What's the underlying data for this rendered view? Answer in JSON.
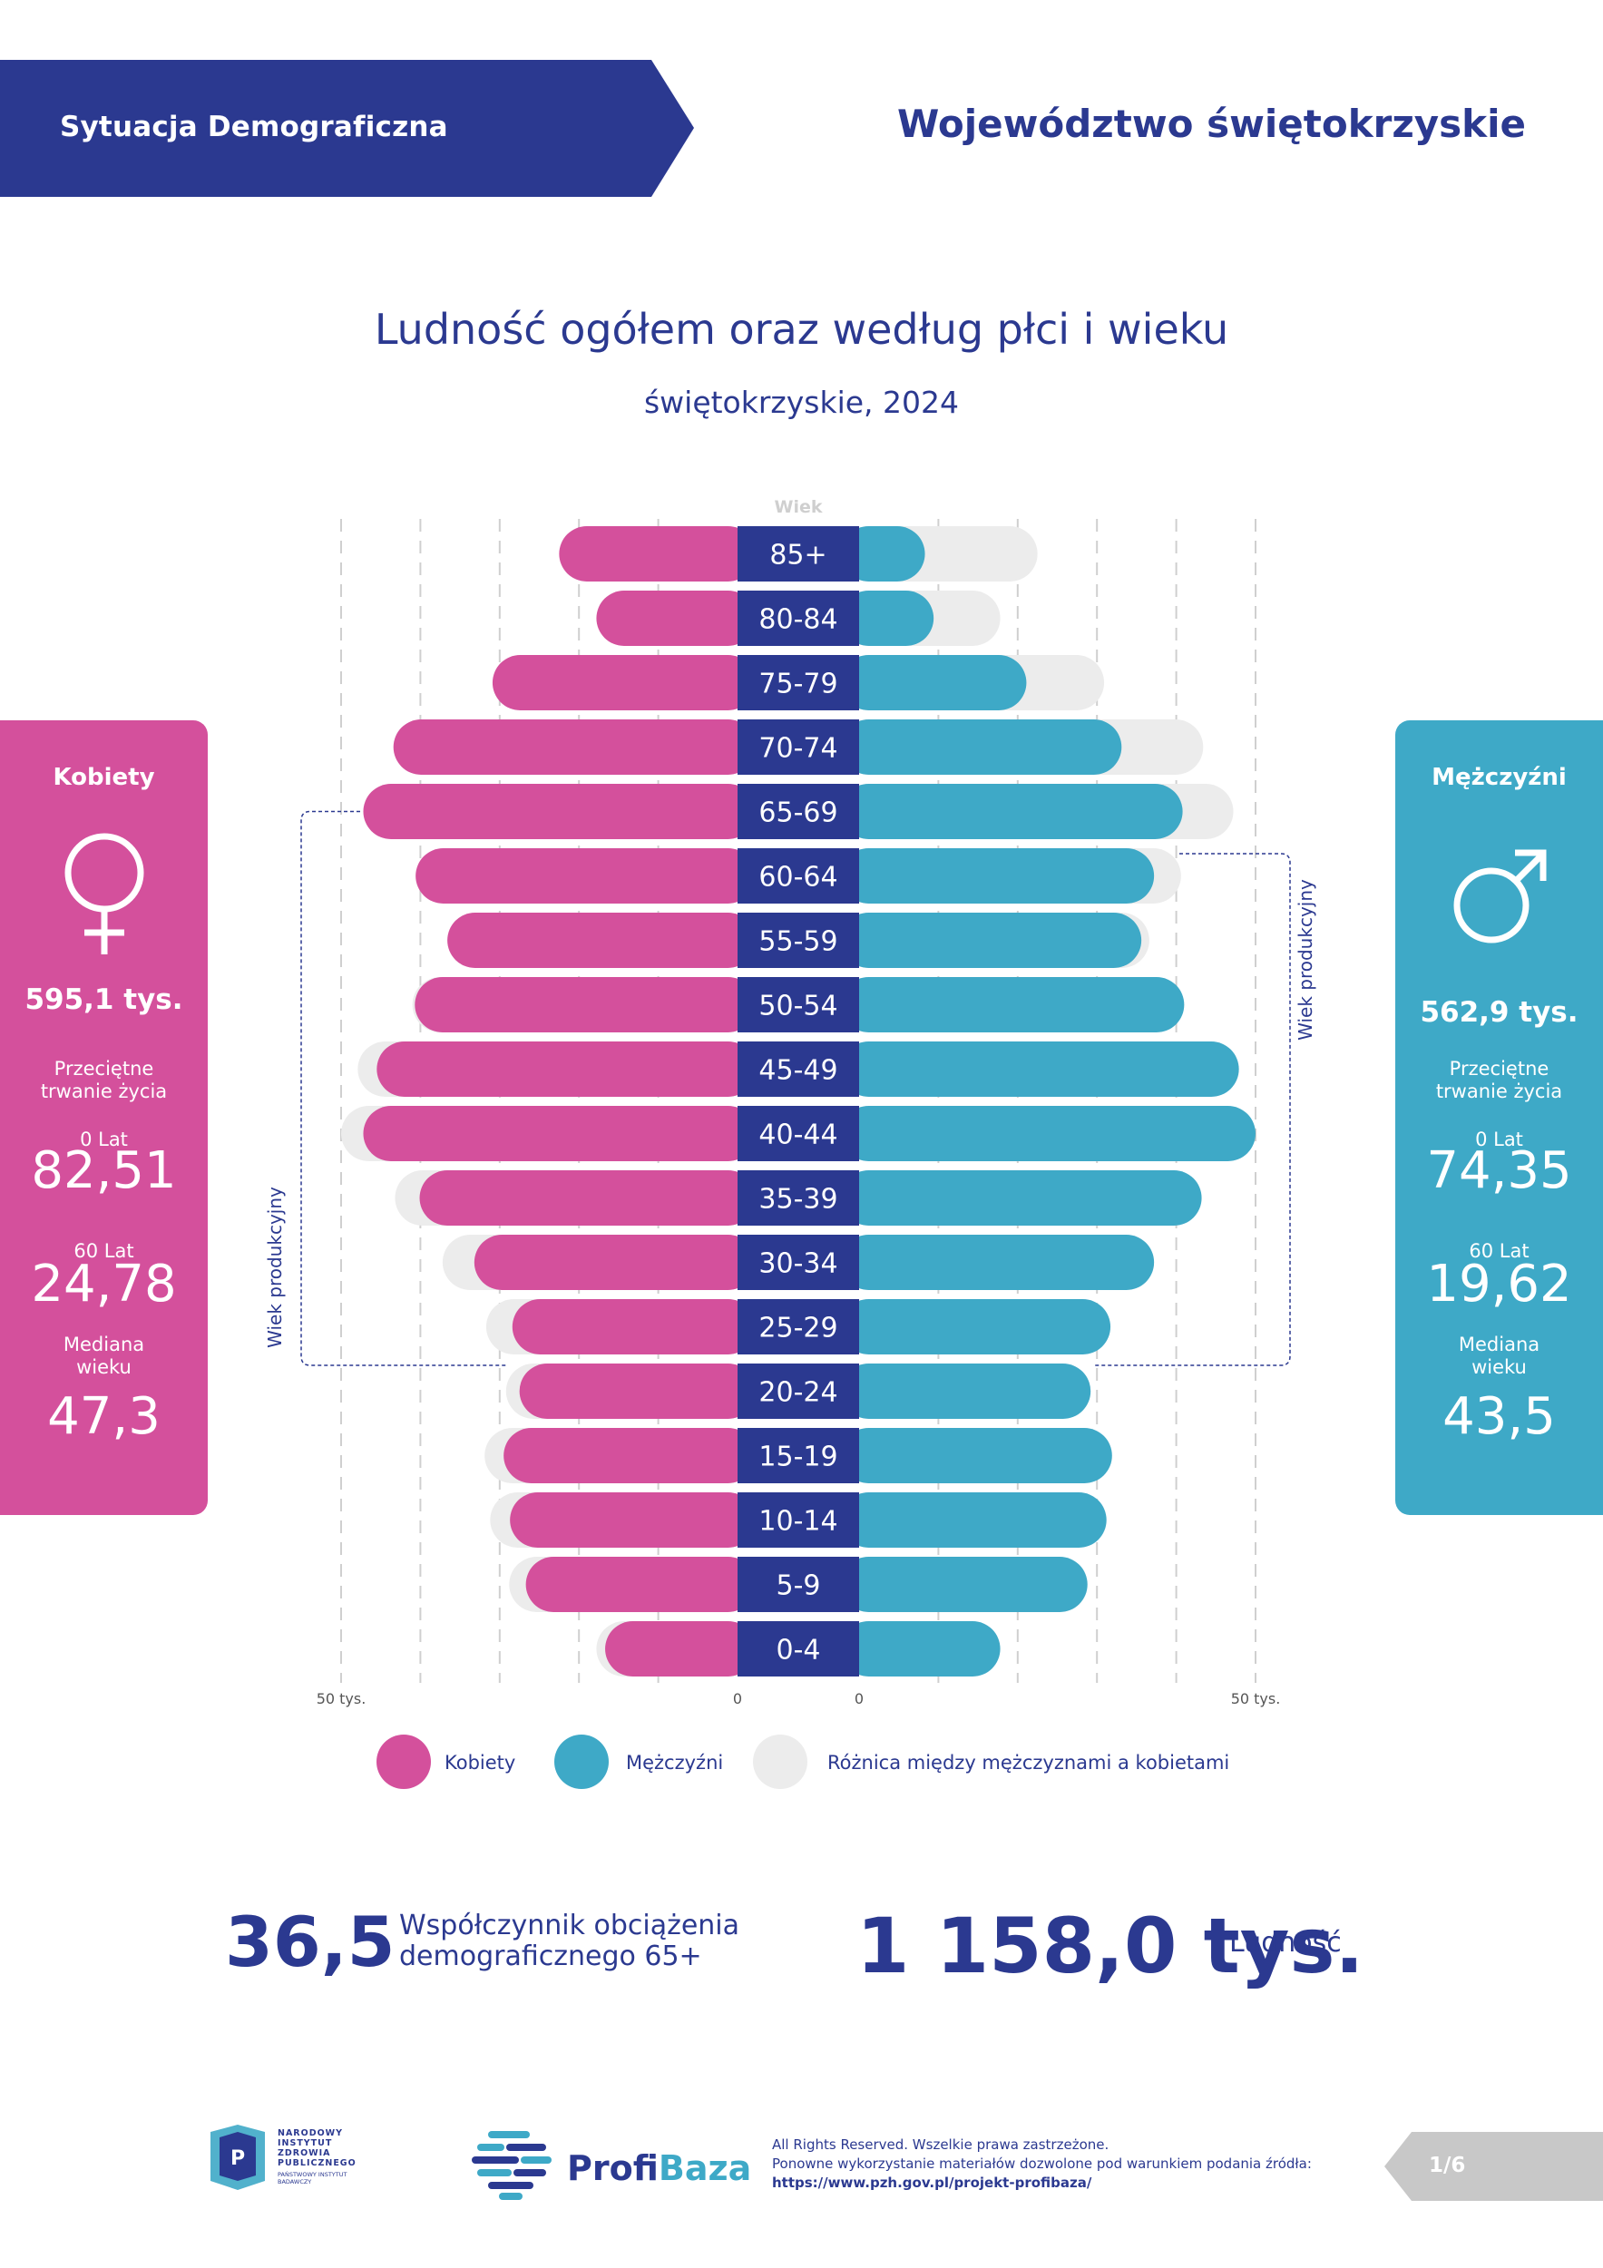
{
  "header": {
    "left_title": "Sytuacja Demograficzna",
    "right_title": "Województwo świętokrzyskie"
  },
  "chart": {
    "title": "Ludność ogółem oraz według płci i wieku",
    "subtitle": "świętokrzyskie, 2024",
    "age_axis_label": "Wiek",
    "working_age_label": "Wiek produkcyjny",
    "scale_left_label": "50 tys.",
    "scale_right_label": "50 tys.",
    "zero_label": "0"
  },
  "chart_data": {
    "type": "bar",
    "orientation": "horizontal-population-pyramid",
    "categories": [
      "85+",
      "80-84",
      "75-79",
      "70-74",
      "65-69",
      "60-64",
      "55-59",
      "50-54",
      "45-49",
      "40-44",
      "35-39",
      "30-34",
      "25-29",
      "20-24",
      "15-19",
      "10-14",
      "5-9",
      "0-4"
    ],
    "series": [
      {
        "name": "Kobiety",
        "side": "left",
        "color": "#d4509c",
        "values": [
          22.5,
          17.8,
          30.9,
          43.4,
          47.2,
          40.6,
          36.6,
          40.7,
          45.5,
          47.2,
          40.1,
          33.2,
          28.4,
          27.5,
          29.5,
          28.7,
          26.7,
          16.7
        ]
      },
      {
        "name": "Mężczyźni",
        "side": "right",
        "color": "#3ea9c7",
        "values": [
          8.3,
          9.4,
          21.1,
          33.1,
          40.8,
          37.2,
          35.6,
          41.0,
          47.9,
          50.0,
          43.2,
          37.2,
          31.7,
          29.2,
          31.9,
          31.2,
          28.8,
          17.8
        ]
      }
    ],
    "difference_series": {
      "name": "Różnica między mężczyznami a kobietami",
      "color": "#ececec",
      "description": "grey extension to the larger of the two sides"
    },
    "x_range": [
      0,
      50
    ],
    "x_unit": "tys.",
    "working_age_range": {
      "women": [
        "20-24",
        "60-64"
      ],
      "men": [
        "20-24",
        "60-64"
      ]
    },
    "grid": true,
    "legend_position": "bottom"
  },
  "legend": [
    {
      "label": "Kobiety",
      "color": "#d4509c"
    },
    {
      "label": "Mężczyźni",
      "color": "#3ea9c7"
    },
    {
      "label": "Różnica między mężczyznami a kobietami",
      "color": "#ececec"
    }
  ],
  "women": {
    "title": "Kobiety",
    "icon": "female-symbol-icon",
    "population": "595,1 tys.",
    "life_label_1": "Przeciętne",
    "life_label_2": "trwanie życia",
    "age0_label": "0 Lat",
    "age0_value": "82,51",
    "age60_label": "60 Lat",
    "age60_value": "24,78",
    "median_label_1": "Mediana",
    "median_label_2": "wieku",
    "median_value": "47,3",
    "color": "#d4509c"
  },
  "men": {
    "title": "Mężczyźni",
    "icon": "male-symbol-icon",
    "population": "562,9 tys.",
    "life_label_1": "Przeciętne",
    "life_label_2": "trwanie życia",
    "age0_label": "0 Lat",
    "age0_value": "74,35",
    "age60_label": "60 Lat",
    "age60_value": "19,62",
    "median_label_1": "Mediana",
    "median_label_2": "wieku",
    "median_value": "43,5",
    "color": "#3ea9c7"
  },
  "stats": {
    "ratio_value": "36,5",
    "ratio_label_1": "Współczynnik obciążenia",
    "ratio_label_2": "demograficznego 65+",
    "population_value": "1 158,0 tys.",
    "population_label": "Ludność"
  },
  "footer": {
    "nizp_lines": [
      "NARODOWY",
      "INSTYTUT",
      "ZDROWIA",
      "PUBLICZNEGO",
      "PAŃSTWOWY INSTYTUT",
      "BADAWCZY"
    ],
    "profibaza_part1": "Profi",
    "profibaza_part2": "Baza",
    "copyright_1": "All Rights Reserved. Wszelkie prawa zastrzeżone.",
    "copyright_2": "Ponowne wykorzystanie materiałów dozwolone pod warunkiem podania źródła:",
    "link": "https://www.pzh.gov.pl/projekt-profibaza/",
    "page": "1/6"
  },
  "colors": {
    "navy": "#2b3990",
    "women": "#d4509c",
    "men": "#3ea9c7",
    "difference": "#ececec",
    "page_tab": "#c8c8c8"
  }
}
